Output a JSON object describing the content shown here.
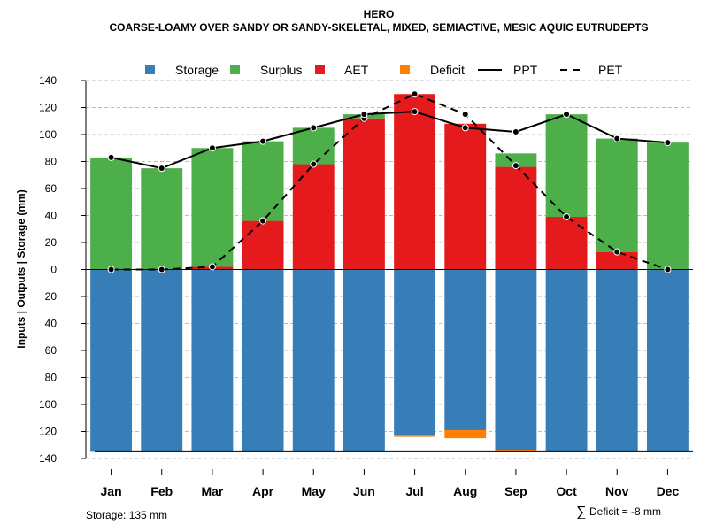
{
  "chart_data": {
    "type": "bar",
    "title": "HERO",
    "subtitle": "COARSE-LOAMY OVER SANDY OR SANDY-SKELETAL, MIXED, SEMIACTIVE, MESIC AQUIC EUTRUDEPTS",
    "ylabel": "Inputs | Outputs | Storage    (mm)",
    "xlabel": "",
    "categories": [
      "Jan",
      "Feb",
      "Mar",
      "Apr",
      "May",
      "Jun",
      "Jul",
      "Aug",
      "Sep",
      "Oct",
      "Nov",
      "Dec"
    ],
    "ylim": [
      -140,
      140
    ],
    "yticks": [
      140,
      120,
      100,
      80,
      60,
      40,
      20,
      0,
      -20,
      -40,
      -60,
      -80,
      -100,
      -120,
      -140
    ],
    "ytick_labels": [
      "140",
      "120",
      "100",
      "80",
      "60",
      "40",
      "20",
      "0",
      "20",
      "40",
      "60",
      "80",
      "100",
      "120",
      "140"
    ],
    "grid": true,
    "legend": {
      "position": "top",
      "labels": [
        "Storage",
        "Surplus",
        "AET",
        "Deficit",
        "PPT",
        "PET"
      ]
    },
    "series": [
      {
        "name": "Storage",
        "values": [
          135,
          135,
          135,
          135,
          135,
          135,
          123,
          119,
          134,
          135,
          135,
          135
        ]
      },
      {
        "name": "Surplus",
        "values": [
          83,
          75,
          88,
          59,
          27,
          3,
          0,
          0,
          10,
          76,
          84,
          94
        ]
      },
      {
        "name": "AET",
        "values": [
          0,
          0,
          2,
          36,
          78,
          112,
          130,
          108,
          76,
          39,
          13,
          0
        ]
      },
      {
        "name": "Deficit",
        "values": [
          0,
          0,
          0,
          0,
          0,
          0,
          1,
          6,
          1,
          0,
          0,
          0
        ]
      },
      {
        "name": "PPT",
        "values": [
          83,
          75,
          90,
          95,
          105,
          115,
          117,
          105,
          102,
          115,
          97,
          94
        ]
      },
      {
        "name": "PET",
        "values": [
          0,
          0,
          2,
          36,
          78,
          112,
          130,
          115,
          77,
          39,
          13,
          0
        ]
      }
    ],
    "colors": {
      "Storage": "#377eb8",
      "Surplus": "#4daf4a",
      "AET": "#e41a1c",
      "Deficit": "#ff7f00",
      "line": "#000000",
      "grid": "#bbbbbb"
    },
    "annotations": {
      "storage_note": "Storage: 135 mm",
      "deficit_symbol": "∑",
      "deficit_note": "Deficit = -8 mm"
    }
  }
}
